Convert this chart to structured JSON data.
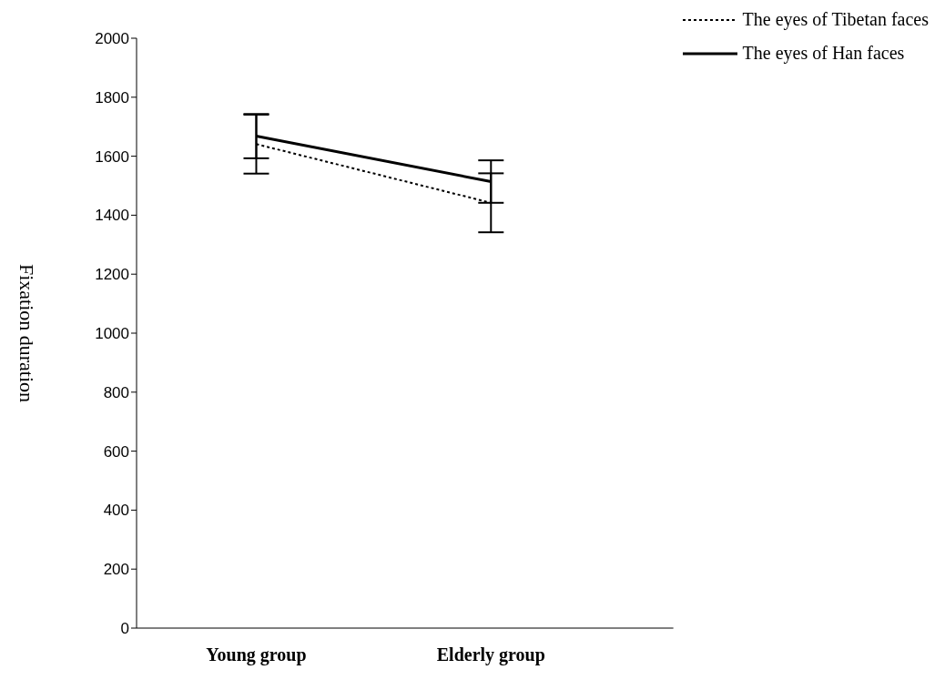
{
  "chart_data": {
    "type": "line",
    "categories": [
      "Young group",
      "Elderly group"
    ],
    "series": [
      {
        "name": "The eyes of Tibetan faces",
        "color": "#000000",
        "line_style": "dotted",
        "values": [
          1641,
          1442
        ],
        "errors": [
          100,
          100
        ]
      },
      {
        "name": "The eyes of Han faces",
        "color": "#000000",
        "line_style": "solid",
        "values": [
          1668,
          1514
        ],
        "errors": [
          75,
          72
        ]
      }
    ],
    "ylabel": "Fixation duration",
    "ylim": [
      0,
      2000
    ],
    "yticks": [
      0,
      200,
      400,
      600,
      800,
      1000,
      1200,
      1400,
      1600,
      1800,
      2000
    ],
    "grid": false,
    "legend": "top right",
    "marker": "none"
  }
}
